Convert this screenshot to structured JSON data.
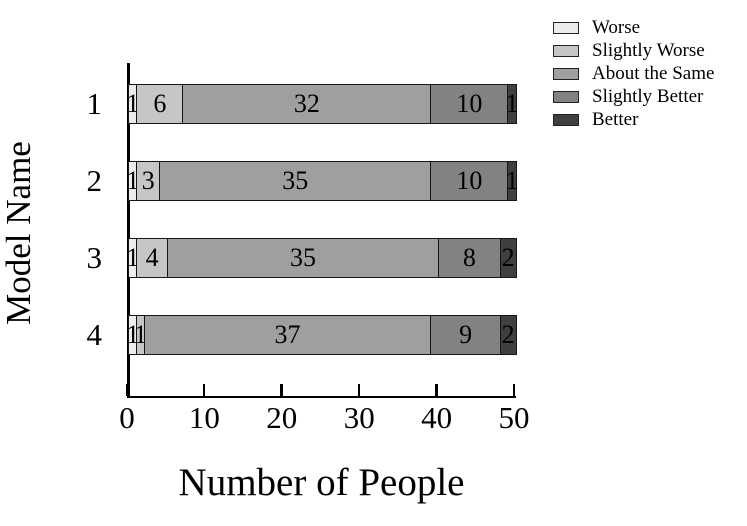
{
  "chart_data": {
    "type": "bar",
    "orientation": "horizontal-stacked",
    "title": "",
    "xlabel": "Number of People",
    "ylabel": "Model Name",
    "categories": [
      "1",
      "2",
      "3",
      "4"
    ],
    "x_ticks": [
      "0",
      "10",
      "20",
      "30",
      "40",
      "50"
    ],
    "xlim": [
      0,
      50
    ],
    "grid": "off",
    "legend_position": "top-right",
    "series": [
      {
        "name": "Worse",
        "color": "#ececec",
        "values": [
          1,
          1,
          1,
          1
        ]
      },
      {
        "name": "Slightly Worse",
        "color": "#c6c6c6",
        "values": [
          6,
          3,
          4,
          1
        ]
      },
      {
        "name": "About the Same",
        "color": "#9f9f9f",
        "values": [
          32,
          35,
          35,
          37
        ]
      },
      {
        "name": "Slightly Better",
        "color": "#828282",
        "values": [
          10,
          10,
          8,
          9
        ]
      },
      {
        "name": "Better",
        "color": "#3f3f3f",
        "values": [
          1,
          1,
          2,
          2
        ]
      }
    ]
  }
}
